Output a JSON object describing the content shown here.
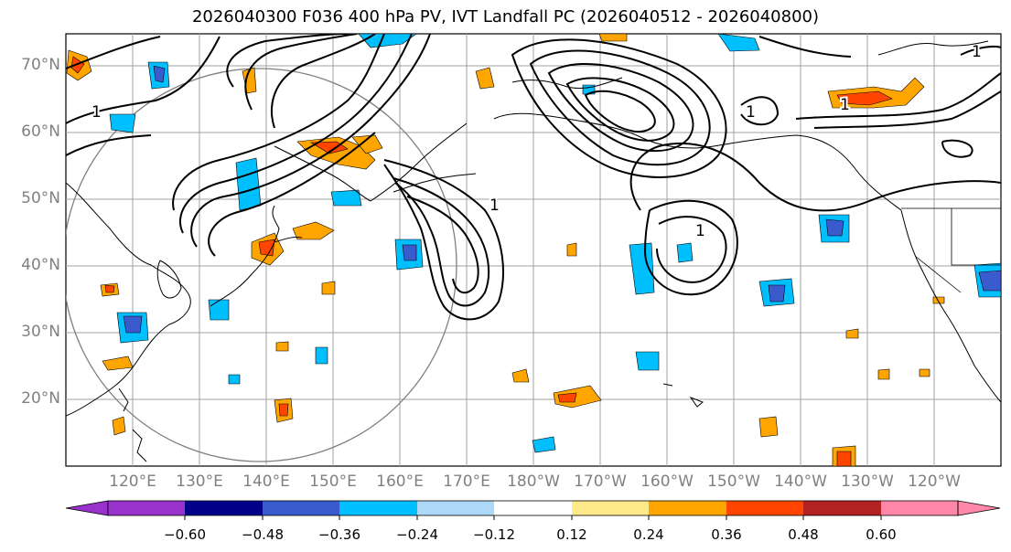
{
  "title": "2026040300 F036 400 hPa PV, IVT Landfall PC (2026040512 - 2026040800)",
  "map": {
    "projection": "Plate Carree",
    "lon_range": "110°E - 110°W",
    "lat_range": "10°N - 75°N",
    "grid": true,
    "coastlines_color": "#000000",
    "grid_color": "#a0a0a0",
    "lat_labels": [
      "70°N",
      "60°N",
      "50°N",
      "40°N",
      "30°N",
      "20°N"
    ],
    "lon_labels": [
      "120°E",
      "130°E",
      "140°E",
      "150°E",
      "160°E",
      "170°E",
      "180°W",
      "170°W",
      "160°W",
      "150°W",
      "140°W",
      "130°W",
      "120°W"
    ],
    "contour_label": "1",
    "contour_color": "#000000",
    "circle_color": "#808080"
  },
  "colorbar": {
    "ticks": [
      "−0.60",
      "−0.48",
      "−0.36",
      "−0.24",
      "−0.12",
      "0.12",
      "0.24",
      "0.36",
      "0.48",
      "0.60"
    ],
    "colors": [
      "#9932cc",
      "#00008b",
      "#3a5bcd",
      "#00bfff",
      "#add8f7",
      "#ffffff",
      "#ffea8a",
      "#ffa500",
      "#ff4500",
      "#b22222",
      "#ff88aa"
    ],
    "extend": "both"
  }
}
